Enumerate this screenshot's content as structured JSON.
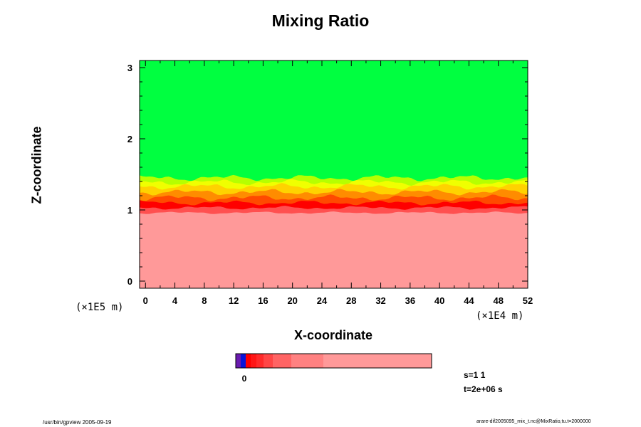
{
  "chart_data": {
    "type": "heatmap",
    "title": "Mixing Ratio",
    "xlabel": "X-coordinate",
    "ylabel": "Z-coordinate",
    "x_unit": "(×1E4 m)",
    "y_unit": "(×1E5 m)",
    "x_ticks": [
      0,
      4,
      8,
      12,
      16,
      20,
      24,
      28,
      32,
      36,
      40,
      44,
      48,
      52
    ],
    "y_ticks": [
      0,
      1,
      2,
      3
    ],
    "xlim": [
      -0.8,
      52
    ],
    "ylim": [
      -0.1,
      3.1
    ],
    "grid": false,
    "colorbar_label": "0",
    "colorbar_colors": [
      "#6a1bb0",
      "#0a14d8",
      "#ff0000",
      "#ff1616",
      "#ff2a2a",
      "#ff4646",
      "#ff6464",
      "#ff8181",
      "#ff9999"
    ],
    "field_colors": {
      "upper": "#00ff40",
      "transition": [
        "#b6ff00",
        "#f0ff00",
        "#ffd200",
        "#ff8c00",
        "#ff4a00"
      ],
      "layer_top": "#ff0000",
      "layer_mid": "#ff5050",
      "lower": "#ff9999"
    },
    "layer_base_z": 1.0,
    "transition_top_z": 1.45
  },
  "info": {
    "step": "s=1 1",
    "time": "t=2e+06 s"
  },
  "footer": {
    "left": "/usr/bin/gpview 2005-09-19",
    "right": "arare-dif2005095_mix_t.nc@MixRatio,tu.t=2000000"
  }
}
